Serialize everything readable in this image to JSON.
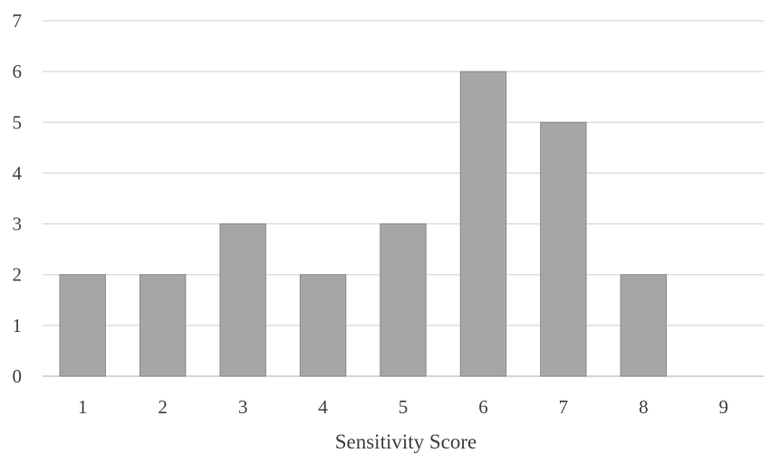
{
  "chart_data": {
    "type": "bar",
    "categories": [
      "1",
      "2",
      "3",
      "4",
      "5",
      "6",
      "7",
      "8",
      "9"
    ],
    "values": [
      2,
      2,
      3,
      2,
      3,
      6,
      5,
      2,
      0
    ],
    "title": "",
    "xlabel": "Sensitivity Score",
    "ylabel": "",
    "ylim": [
      0,
      7
    ],
    "yticks": [
      "0",
      "1",
      "2",
      "3",
      "4",
      "5",
      "6",
      "7"
    ],
    "grid": true,
    "legend": "none",
    "bar_color": "#a6a6a6"
  }
}
